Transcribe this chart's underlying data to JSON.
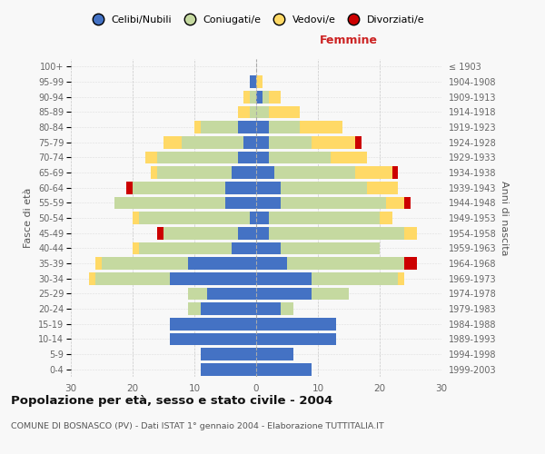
{
  "age_groups": [
    "0-4",
    "5-9",
    "10-14",
    "15-19",
    "20-24",
    "25-29",
    "30-34",
    "35-39",
    "40-44",
    "45-49",
    "50-54",
    "55-59",
    "60-64",
    "65-69",
    "70-74",
    "75-79",
    "80-84",
    "85-89",
    "90-94",
    "95-99",
    "100+"
  ],
  "birth_years": [
    "1999-2003",
    "1994-1998",
    "1989-1993",
    "1984-1988",
    "1979-1983",
    "1974-1978",
    "1969-1973",
    "1964-1968",
    "1959-1963",
    "1954-1958",
    "1949-1953",
    "1944-1948",
    "1939-1943",
    "1934-1938",
    "1929-1933",
    "1924-1928",
    "1919-1923",
    "1914-1918",
    "1909-1913",
    "1904-1908",
    "≤ 1903"
  ],
  "male": {
    "celibi": [
      9,
      9,
      14,
      14,
      9,
      8,
      14,
      11,
      4,
      3,
      1,
      5,
      5,
      4,
      3,
      2,
      3,
      0,
      0,
      1,
      0
    ],
    "coniugati": [
      0,
      0,
      0,
      0,
      2,
      3,
      12,
      14,
      15,
      12,
      18,
      18,
      15,
      12,
      13,
      10,
      6,
      1,
      1,
      0,
      0
    ],
    "vedovi": [
      0,
      0,
      0,
      0,
      0,
      0,
      1,
      1,
      1,
      0,
      1,
      0,
      0,
      1,
      2,
      3,
      1,
      2,
      1,
      0,
      0
    ],
    "divorziati": [
      0,
      0,
      0,
      0,
      0,
      0,
      0,
      0,
      0,
      1,
      0,
      0,
      1,
      0,
      0,
      0,
      0,
      0,
      0,
      0,
      0
    ]
  },
  "female": {
    "nubili": [
      9,
      6,
      13,
      13,
      4,
      9,
      9,
      5,
      4,
      2,
      2,
      4,
      4,
      3,
      2,
      2,
      2,
      0,
      1,
      0,
      0
    ],
    "coniugate": [
      0,
      0,
      0,
      0,
      2,
      6,
      14,
      19,
      16,
      22,
      18,
      17,
      14,
      13,
      10,
      7,
      5,
      2,
      1,
      0,
      0
    ],
    "vedove": [
      0,
      0,
      0,
      0,
      0,
      0,
      1,
      0,
      0,
      2,
      2,
      3,
      5,
      6,
      6,
      7,
      7,
      5,
      2,
      1,
      0
    ],
    "divorziate": [
      0,
      0,
      0,
      0,
      0,
      0,
      0,
      2,
      0,
      0,
      0,
      1,
      0,
      1,
      0,
      1,
      0,
      0,
      0,
      0,
      0
    ]
  },
  "color_celibi": "#4472C4",
  "color_coniugati": "#C5D9A0",
  "color_vedovi": "#FFD966",
  "color_divorziati": "#CC0000",
  "xlim": 30,
  "title": "Popolazione per età, sesso e stato civile - 2004",
  "subtitle": "COMUNE DI BOSNASCO (PV) - Dati ISTAT 1° gennaio 2004 - Elaborazione TUTTITALIA.IT",
  "ylabel": "Fasce di età",
  "ylabel_right": "Anni di nascita",
  "xlabel_right": "Femmine",
  "bg_color": "#f8f8f8"
}
